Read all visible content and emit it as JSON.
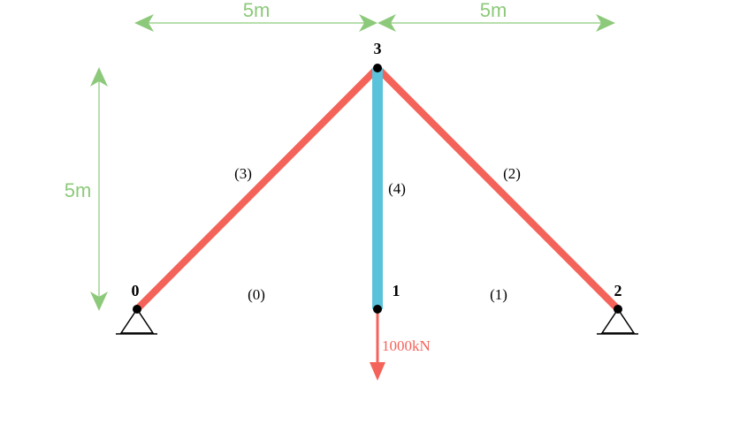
{
  "colors": {
    "dimension": "#8cc97a",
    "diagonal_member": "#f4635a",
    "vertical_member": "#5bc2dc",
    "load": "#f4635a",
    "node": "#000000"
  },
  "dimensions": {
    "top_left": "5m",
    "top_right": "5m",
    "left_vertical": "5m"
  },
  "nodes": [
    {
      "id": "0",
      "label": "0"
    },
    {
      "id": "1",
      "label": "1"
    },
    {
      "id": "2",
      "label": "2"
    },
    {
      "id": "3",
      "label": "3"
    }
  ],
  "members": [
    {
      "id": "0",
      "label": "(0)",
      "from": "0",
      "to": "1",
      "visible_bar": false
    },
    {
      "id": "1",
      "label": "(1)",
      "from": "1",
      "to": "2",
      "visible_bar": false
    },
    {
      "id": "2",
      "label": "(2)",
      "from": "3",
      "to": "2",
      "visible_bar": true
    },
    {
      "id": "3",
      "label": "(3)",
      "from": "0",
      "to": "3",
      "visible_bar": true
    },
    {
      "id": "4",
      "label": "(4)",
      "from": "3",
      "to": "1",
      "visible_bar": true
    }
  ],
  "supports": [
    {
      "node": "0",
      "type": "pin"
    },
    {
      "node": "2",
      "type": "pin"
    }
  ],
  "loads": [
    {
      "node": "1",
      "label": "1000kN",
      "direction": "down"
    }
  ]
}
